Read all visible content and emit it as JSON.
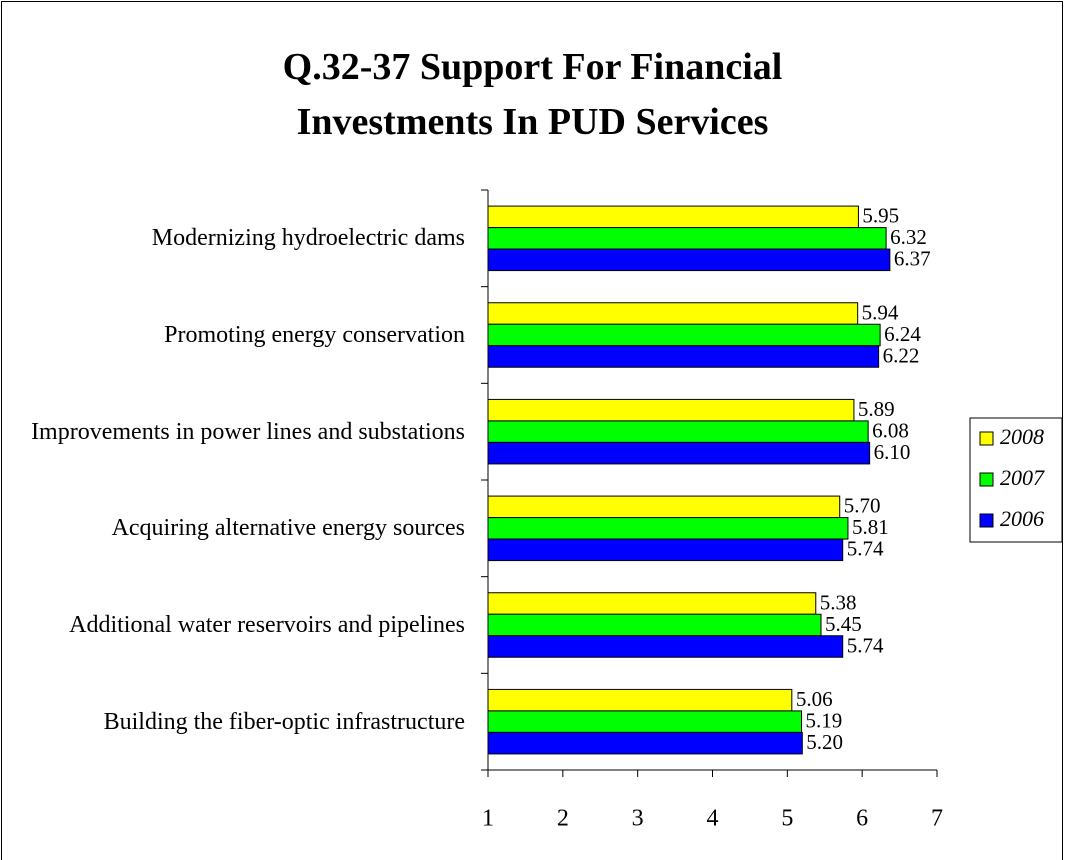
{
  "chart_data": {
    "type": "bar",
    "orientation": "horizontal",
    "title": "Q.32-37 Support For Financial Investments In PUD Services",
    "categories": [
      "Modernizing hydroelectric dams",
      "Promoting energy conservation",
      "Improvements in power lines and substations",
      "Acquiring alternative energy sources",
      "Additional water reservoirs and pipelines",
      "Building the fiber-optic infrastructure"
    ],
    "series": [
      {
        "name": "2008",
        "color": "#ffff00",
        "values": [
          5.95,
          5.94,
          5.89,
          5.7,
          5.38,
          5.06
        ],
        "value_labels": [
          "5.95",
          "5.94",
          "5.89",
          "5.70",
          "5.38",
          "5.06"
        ]
      },
      {
        "name": "2007",
        "color": "#00ff00",
        "values": [
          6.32,
          6.24,
          6.08,
          5.81,
          5.45,
          5.19
        ],
        "value_labels": [
          "6.32",
          "6.24",
          "6.08",
          "5.81",
          "5.45",
          "5.19"
        ]
      },
      {
        "name": "2006",
        "color": "#0000ff",
        "values": [
          6.37,
          6.22,
          6.1,
          5.74,
          5.74,
          5.2
        ],
        "value_labels": [
          "6.37",
          "6.22",
          "6.10",
          "5.74",
          "5.74",
          "5.20"
        ]
      }
    ],
    "xlim": [
      1,
      7
    ],
    "xticks": [
      1,
      2,
      3,
      4,
      5,
      6,
      7
    ],
    "legend": "right"
  }
}
